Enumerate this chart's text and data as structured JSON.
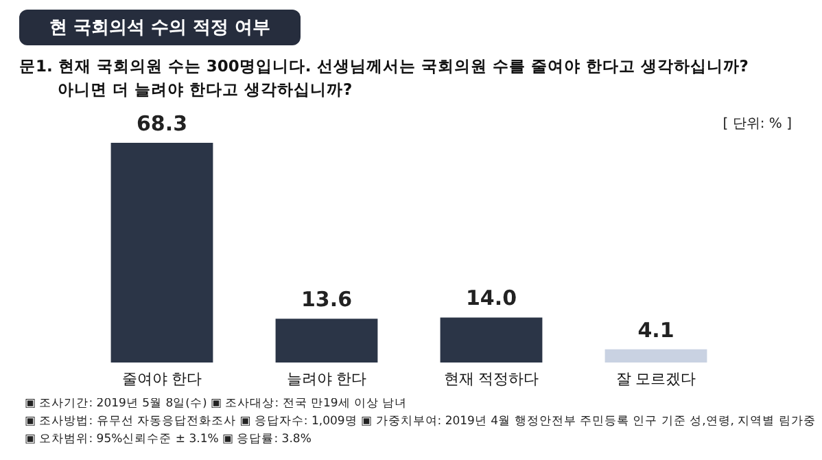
{
  "chart_data": {
    "type": "bar",
    "title": "현 국회의석 수의 적정 여부",
    "subtitle": "문1. 현재 국회의원 수는 300명입니다. 선생님께서는 국회의원 수를 줄여야 한다고 생각하십니까?\n아니면 더 늘려야 한다고 생각하십니까?",
    "categories": [
      "줄여야 한다",
      "늘려야 한다",
      "현재 적정하다",
      "잘 모르겠다"
    ],
    "values": [
      68.3,
      13.6,
      14.0,
      4.1
    ],
    "colors": [
      "#2b3547",
      "#2b3547",
      "#2b3547",
      "#c9d2e2"
    ],
    "value_labels": [
      "68.3",
      "13.6",
      "14.0",
      "4.1"
    ],
    "annotations": [
      "[ 단위: % ]",
      "▣ 조사기간: 2019년 5월 8일(수) ▣ 조사대상: 전국 만19세 이상 남녀",
      "▣ 조사방법: 유무선 자동응답전화조사 ▣ 응답자수: 1,009명 ▣ 가중치부여: 2019년 4월 행정안전부 주민등록 인구 기준 성,연령, 지역별 림가중",
      "▣ 오차범위: 95%신뢰수준 ± 3.1% ▣ 응답률: 3.8%"
    ]
  }
}
